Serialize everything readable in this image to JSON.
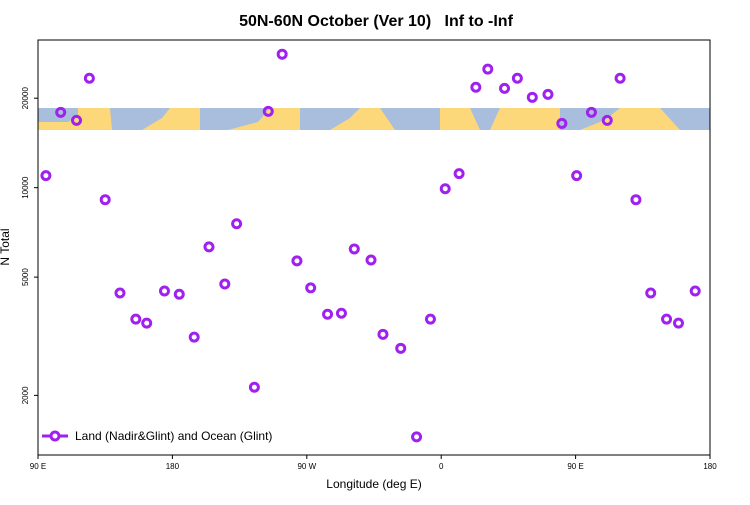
{
  "chart_data": {
    "type": "scatter",
    "title": "50N-60N October (Ver 10)   Inf to -Inf",
    "xlabel": "Longitude (deg E)",
    "ylabel": "N Total",
    "xlim": [
      90,
      540
    ],
    "xticks": [
      {
        "value": 90,
        "label": "90 E"
      },
      {
        "value": 180,
        "label": "180"
      },
      {
        "value": 270,
        "label": "90 W"
      },
      {
        "value": 360,
        "label": "0"
      },
      {
        "value": 450,
        "label": "90 E"
      },
      {
        "value": 540,
        "label": "180"
      }
    ],
    "ylim": [
      1260,
      31400
    ],
    "ylog": true,
    "yticks": [
      2000,
      5000,
      10000,
      20000
    ],
    "legend": "bottom-left",
    "series": [
      {
        "name": "Land (Nadir&Glint) and Ocean (Glint)",
        "color": "#a020f0",
        "x": [
          95.3,
          105.2,
          115.8,
          124.4,
          135,
          144.9,
          155.5,
          162.8,
          174.7,
          184.6,
          194.6,
          204.5,
          215.1,
          223,
          234.9,
          244.2,
          253.5,
          263.4,
          272.6,
          283.9,
          293.2,
          301.8,
          313,
          321,
          332.9,
          343.5,
          352.8,
          362.7,
          372,
          383.2,
          391.2,
          402.4,
          411,
          421,
          431.5,
          440.8,
          450.7,
          460.6,
          471.2,
          479.8,
          490.4,
          500.3,
          510.9,
          518.9,
          530.1
        ],
        "values": [
          10980,
          17920,
          16840,
          23350,
          9110,
          4420,
          3610,
          3500,
          4490,
          4380,
          3140,
          6320,
          4740,
          7560,
          2130,
          18060,
          28130,
          5670,
          4600,
          3750,
          3780,
          6220,
          5710,
          3210,
          2880,
          1450,
          3610,
          9920,
          11150,
          21770,
          25050,
          21590,
          23350,
          20140,
          20610,
          16450,
          10980,
          17920,
          16840,
          23350,
          9110,
          4420,
          3610,
          3500,
          4490
        ]
      }
    ]
  }
}
